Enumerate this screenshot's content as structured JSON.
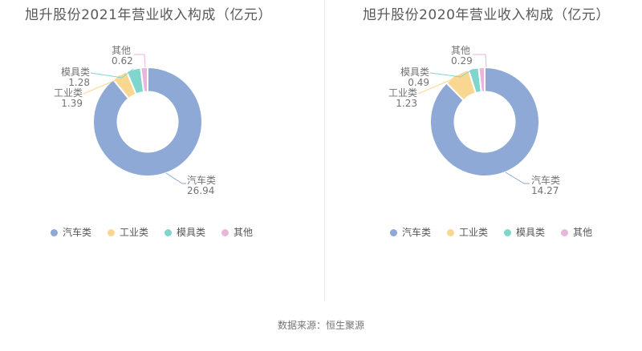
{
  "source_note": "数据来源：恒生聚源",
  "chart_data": [
    {
      "type": "pie",
      "donut": true,
      "title": "旭升股份2021年营业收入构成（亿元）",
      "year": "2021",
      "unit": "亿元",
      "categories": [
        "汽车类",
        "工业类",
        "模具类",
        "其他"
      ],
      "values": [
        26.94,
        1.39,
        1.28,
        0.62
      ],
      "colors": [
        "#8EA9D6",
        "#FAD791",
        "#80D6CD",
        "#E9B6DB"
      ],
      "legend": [
        "汽车类",
        "工业类",
        "模具类",
        "其他"
      ],
      "legend_position": "bottom",
      "label_format": "name + value"
    },
    {
      "type": "pie",
      "donut": true,
      "title": "旭升股份2020年营业收入构成（亿元）",
      "year": "2020",
      "unit": "亿元",
      "categories": [
        "汽车类",
        "工业类",
        "模具类",
        "其他"
      ],
      "values": [
        14.27,
        1.23,
        0.49,
        0.29
      ],
      "colors": [
        "#8EA9D6",
        "#FAD791",
        "#80D6CD",
        "#E9B6DB"
      ],
      "legend": [
        "汽车类",
        "工业类",
        "模具类",
        "其他"
      ],
      "legend_position": "bottom",
      "label_format": "name + value"
    }
  ]
}
